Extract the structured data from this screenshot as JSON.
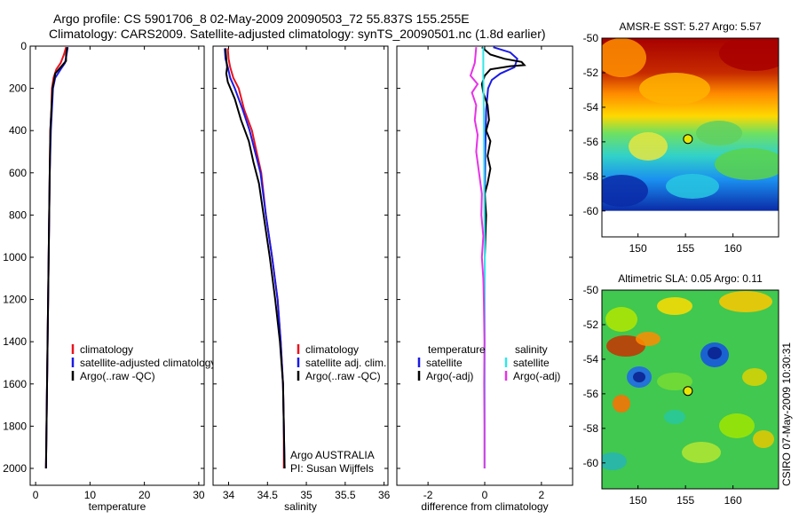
{
  "title": {
    "line1": "Argo profile: CS 5901706_8 02-May-2009 20090503_72 55.837S 155.255E",
    "line2": "Climatology: CARS2009. Satellite-adjusted climatology: synTS_20090501.nc (1.8d earlier)"
  },
  "side_label": "CSIRO 07-May-2009 10:30:31",
  "colors": {
    "red": "#e8141e",
    "blue": "#1a1ae6",
    "black": "#000000",
    "cyan": "#33e6e6",
    "magenta": "#e633e6"
  },
  "chart_data": [
    {
      "type": "line",
      "id": "temperature",
      "xlabel": "temperature",
      "xlim": [
        -1,
        31
      ],
      "ylim": [
        0,
        2080
      ],
      "xticks": [
        0,
        10,
        20,
        30
      ],
      "yticks": [
        0,
        200,
        400,
        600,
        800,
        1000,
        1200,
        1400,
        1600,
        1800,
        2000
      ],
      "legend": {
        "location": "lower-right",
        "entries": [
          {
            "label": "climatology",
            "color": "red"
          },
          {
            "label": "satellite-adjusted climatology",
            "color": "blue"
          },
          {
            "label": "Argo(..raw -QC)",
            "color": "black"
          }
        ]
      },
      "series": [
        {
          "name": "climatology",
          "color": "red",
          "points": [
            [
              5.6,
              5
            ],
            [
              5.2,
              40
            ],
            [
              4.6,
              80
            ],
            [
              3.8,
              110
            ],
            [
              3.3,
              150
            ],
            [
              3.0,
              200
            ],
            [
              2.9,
              300
            ],
            [
              2.7,
              400
            ],
            [
              2.6,
              600
            ],
            [
              2.5,
              800
            ],
            [
              2.4,
              1000
            ],
            [
              2.3,
              1200
            ],
            [
              2.2,
              1400
            ],
            [
              2.1,
              1600
            ],
            [
              2.0,
              1800
            ],
            [
              1.9,
              2000
            ]
          ]
        },
        {
          "name": "satellite-adjusted climatology",
          "color": "blue",
          "points": [
            [
              5.9,
              5
            ],
            [
              5.7,
              40
            ],
            [
              5.4,
              80
            ],
            [
              4.6,
              110
            ],
            [
              3.6,
              150
            ],
            [
              3.2,
              200
            ],
            [
              3.0,
              300
            ],
            [
              2.8,
              400
            ],
            [
              2.6,
              600
            ],
            [
              2.5,
              800
            ],
            [
              2.4,
              1000
            ],
            [
              2.3,
              1200
            ],
            [
              2.2,
              1400
            ],
            [
              2.1,
              1600
            ],
            [
              2.0,
              1800
            ],
            [
              1.9,
              2000
            ]
          ]
        },
        {
          "name": "Argo(..raw -QC)",
          "color": "black",
          "points": [
            [
              5.8,
              5
            ],
            [
              5.6,
              40
            ],
            [
              5.6,
              70
            ],
            [
              4.6,
              100
            ],
            [
              3.6,
              130
            ],
            [
              3.4,
              160
            ],
            [
              3.1,
              200
            ],
            [
              2.9,
              300
            ],
            [
              2.7,
              400
            ],
            [
              2.6,
              600
            ],
            [
              2.5,
              800
            ],
            [
              2.4,
              1000
            ],
            [
              2.3,
              1200
            ],
            [
              2.2,
              1400
            ],
            [
              2.1,
              1600
            ],
            [
              2.0,
              1800
            ],
            [
              1.9,
              2000
            ]
          ]
        }
      ]
    },
    {
      "type": "line",
      "id": "salinity",
      "xlabel": "salinity",
      "xlim": [
        33.8,
        36.05
      ],
      "ylim": [
        0,
        2080
      ],
      "xticks": [
        34,
        34.5,
        35,
        35.5,
        36
      ],
      "xticklabels": [
        "34",
        "34.5",
        "35",
        "35.5",
        "36"
      ],
      "legend": {
        "location": "lower-right",
        "entries": [
          {
            "label": "climatology",
            "color": "red"
          },
          {
            "label": "satellite adj. clim.",
            "color": "blue"
          },
          {
            "label": "Argo(..raw -QC)",
            "color": "black"
          }
        ]
      },
      "annotation": [
        "Argo AUSTRALIA",
        "PI: Susan Wijffels"
      ],
      "series": [
        {
          "name": "climatology",
          "color": "red",
          "points": [
            [
              33.99,
              10
            ],
            [
              34.0,
              60
            ],
            [
              34.02,
              100
            ],
            [
              34.06,
              150
            ],
            [
              34.13,
              200
            ],
            [
              34.2,
              300
            ],
            [
              34.3,
              400
            ],
            [
              34.36,
              500
            ],
            [
              34.42,
              600
            ],
            [
              34.48,
              800
            ],
            [
              34.56,
              1000
            ],
            [
              34.63,
              1200
            ],
            [
              34.67,
              1400
            ],
            [
              34.7,
              1600
            ],
            [
              34.71,
              1800
            ],
            [
              34.71,
              2000
            ]
          ]
        },
        {
          "name": "satellite adj. clim.",
          "color": "blue",
          "points": [
            [
              33.95,
              10
            ],
            [
              33.96,
              60
            ],
            [
              33.99,
              100
            ],
            [
              34.02,
              150
            ],
            [
              34.08,
              200
            ],
            [
              34.18,
              300
            ],
            [
              34.27,
              400
            ],
            [
              34.34,
              500
            ],
            [
              34.41,
              600
            ],
            [
              34.48,
              800
            ],
            [
              34.56,
              1000
            ],
            [
              34.63,
              1200
            ],
            [
              34.67,
              1400
            ],
            [
              34.7,
              1600
            ],
            [
              34.71,
              1800
            ],
            [
              34.72,
              2000
            ]
          ]
        },
        {
          "name": "Argo(..raw -QC)",
          "color": "black",
          "points": [
            [
              33.96,
              10
            ],
            [
              33.97,
              60
            ],
            [
              33.98,
              100
            ],
            [
              33.97,
              130
            ],
            [
              33.99,
              170
            ],
            [
              34.08,
              250
            ],
            [
              34.16,
              350
            ],
            [
              34.26,
              450
            ],
            [
              34.32,
              550
            ],
            [
              34.39,
              650
            ],
            [
              34.45,
              800
            ],
            [
              34.53,
              1000
            ],
            [
              34.6,
              1200
            ],
            [
              34.66,
              1400
            ],
            [
              34.7,
              1600
            ],
            [
              34.71,
              1800
            ],
            [
              34.72,
              2000
            ]
          ]
        }
      ]
    },
    {
      "type": "line",
      "id": "difference",
      "xlabel": "difference from climatology",
      "xlim": [
        -3.1,
        3.1
      ],
      "ylim": [
        0,
        2080
      ],
      "xticks": [
        -2,
        0,
        2
      ],
      "legend": {
        "location": "lower-right",
        "columns": [
          {
            "heading": "temperature",
            "entries": [
              {
                "label": "satellite",
                "color": "blue"
              },
              {
                "label": "Argo(-adj)",
                "color": "black"
              }
            ]
          },
          {
            "heading": "salinity",
            "entries": [
              {
                "label": "satellite",
                "color": "cyan"
              },
              {
                "label": "Argo(-adj)",
                "color": "magenta"
              }
            ]
          }
        ]
      },
      "series": [
        {
          "name": "temperature satellite",
          "color": "blue",
          "points": [
            [
              0.3,
              5
            ],
            [
              0.9,
              30
            ],
            [
              1.15,
              60
            ],
            [
              1.05,
              100
            ],
            [
              0.55,
              130
            ],
            [
              0.25,
              160
            ],
            [
              0.12,
              200
            ],
            [
              0.05,
              300
            ],
            [
              0.02,
              500
            ],
            [
              0.0,
              800
            ],
            [
              0.0,
              1200
            ],
            [
              0.0,
              1600
            ],
            [
              0.0,
              2000
            ]
          ]
        },
        {
          "name": "temperature Argo(-adj)",
          "color": "black",
          "points": [
            [
              -0.1,
              5
            ],
            [
              0.2,
              40
            ],
            [
              0.7,
              60
            ],
            [
              1.3,
              75
            ],
            [
              1.4,
              90
            ],
            [
              0.9,
              95
            ],
            [
              0.2,
              110
            ],
            [
              0.0,
              140
            ],
            [
              -0.1,
              180
            ],
            [
              -0.05,
              220
            ],
            [
              0.1,
              280
            ],
            [
              0.15,
              350
            ],
            [
              0.05,
              400
            ],
            [
              0.2,
              450
            ],
            [
              0.1,
              520
            ],
            [
              0.2,
              580
            ],
            [
              0.1,
              650
            ],
            [
              0.0,
              700
            ],
            [
              0.05,
              800
            ],
            [
              0.0,
              1000
            ],
            [
              0.0,
              1400
            ],
            [
              0.0,
              2000
            ]
          ]
        },
        {
          "name": "salinity satellite",
          "color": "cyan",
          "points": [
            [
              -0.05,
              5
            ],
            [
              -0.05,
              60
            ],
            [
              -0.05,
              150
            ],
            [
              -0.03,
              300
            ],
            [
              -0.02,
              600
            ],
            [
              0.0,
              1000
            ],
            [
              0.0,
              1400
            ],
            [
              0.0,
              2000
            ]
          ]
        },
        {
          "name": "salinity Argo(-adj)",
          "color": "magenta",
          "points": [
            [
              -0.3,
              5
            ],
            [
              -0.35,
              80
            ],
            [
              -0.5,
              140
            ],
            [
              -0.25,
              180
            ],
            [
              -0.45,
              220
            ],
            [
              -0.3,
              280
            ],
            [
              -0.35,
              350
            ],
            [
              -0.25,
              420
            ],
            [
              -0.3,
              500
            ],
            [
              -0.2,
              600
            ],
            [
              -0.1,
              700
            ],
            [
              -0.12,
              800
            ],
            [
              -0.05,
              900
            ],
            [
              -0.1,
              1000
            ],
            [
              -0.05,
              1100
            ],
            [
              -0.03,
              1200
            ],
            [
              -0.01,
              1400
            ],
            [
              -0.02,
              1600
            ],
            [
              -0.01,
              1800
            ],
            [
              -0.01,
              2000
            ]
          ]
        }
      ]
    },
    {
      "type": "heatmap",
      "id": "sst-map",
      "title": "AMSR-E SST: 5.27 Argo: 5.57",
      "xlim": [
        146.2,
        164.8
      ],
      "ylim": [
        -61.5,
        -50
      ],
      "xticks": [
        150,
        155,
        160
      ],
      "yticks": [
        -50,
        -52,
        -54,
        -56,
        -58,
        -60
      ],
      "data_extent": {
        "lon": [
          146.2,
          164.8
        ],
        "lat": [
          -60,
          -50
        ]
      },
      "marker": {
        "lon": 155.255,
        "lat": -55.837
      }
    },
    {
      "type": "heatmap",
      "id": "sla-map",
      "title": "Altimetric SLA: 0.05 Argo: 0.11",
      "xlim": [
        146.2,
        164.8
      ],
      "ylim": [
        -61.5,
        -50
      ],
      "xticks": [
        150,
        155,
        160
      ],
      "yticks": [
        -50,
        -52,
        -54,
        -56,
        -58,
        -60
      ],
      "data_extent": {
        "lon": [
          146.2,
          164.8
        ],
        "lat": [
          -61.5,
          -50
        ]
      },
      "marker": {
        "lon": 155.255,
        "lat": -55.837
      }
    }
  ]
}
